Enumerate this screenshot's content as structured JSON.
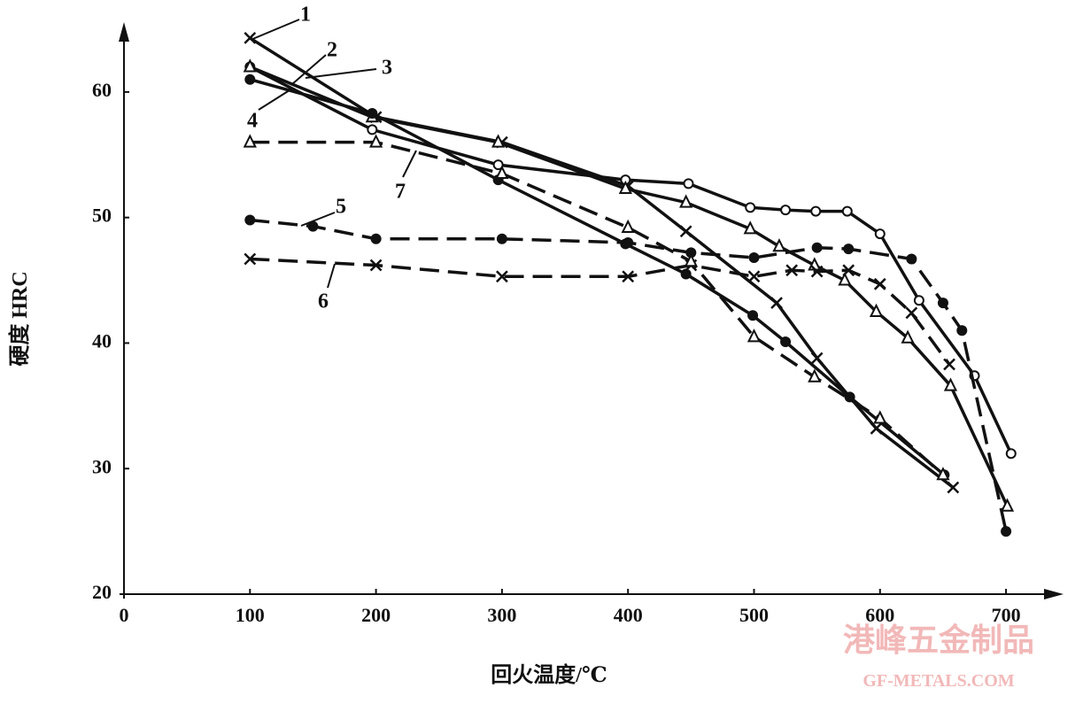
{
  "chart_data": {
    "type": "line",
    "x_label": "回火温度/℃",
    "y_label": "硬度  HRC",
    "xlim": [
      0,
      740
    ],
    "ylim": [
      20,
      65
    ],
    "xticks": [
      0,
      100,
      200,
      300,
      400,
      500,
      600,
      700
    ],
    "yticks": [
      20,
      30,
      40,
      50,
      60
    ],
    "series": [
      {
        "name": "1",
        "color": "#111111",
        "marker": "x",
        "dashed": false,
        "x": [
          100,
          200,
          300,
          400,
          446,
          518,
          550,
          597,
          658
        ],
        "values": [
          64.3,
          58,
          56,
          52.5,
          48.9,
          43.2,
          38.8,
          33.2,
          28.5
        ]
      },
      {
        "name": "2",
        "color": "#111111",
        "marker": "open-circle",
        "dashed": false,
        "x": [
          100,
          197,
          297,
          398,
          448,
          497,
          525,
          549,
          574,
          600,
          631,
          675,
          704
        ],
        "values": [
          62,
          57,
          54.2,
          53,
          52.7,
          50.8,
          50.6,
          50.5,
          50.5,
          48.7,
          43.4,
          37.4,
          31.2
        ]
      },
      {
        "name": "3",
        "color": "#111111",
        "marker": "triangle",
        "dashed": false,
        "x": [
          100,
          197,
          297,
          398,
          446,
          497,
          520,
          548,
          572,
          597,
          622,
          656,
          701
        ],
        "values": [
          62,
          58,
          56,
          52.3,
          51.2,
          49.1,
          47.7,
          46.2,
          45,
          42.5,
          40.4,
          36.6,
          27
        ]
      },
      {
        "name": "4",
        "color": "#111111",
        "marker": "filled-circle",
        "dashed": false,
        "x": [
          100,
          197,
          297,
          398,
          446,
          499,
          525,
          576,
          651
        ],
        "values": [
          61,
          58.3,
          53,
          47.9,
          45.5,
          42.2,
          40.1,
          35.7,
          29.5
        ]
      },
      {
        "name": "5",
        "color": "#111111",
        "marker": "filled-circle",
        "dashed": true,
        "x": [
          100,
          150,
          200,
          300,
          400,
          450,
          500,
          550,
          575,
          625,
          650,
          665,
          700
        ],
        "values": [
          49.8,
          49.3,
          48.3,
          48.3,
          48,
          47.2,
          46.8,
          47.6,
          47.5,
          46.7,
          43.2,
          41,
          25
        ]
      },
      {
        "name": "6",
        "color": "#111111",
        "marker": "x",
        "dashed": true,
        "x": [
          100,
          200,
          300,
          400,
          450,
          500,
          530,
          550,
          575,
          600,
          625,
          655
        ],
        "values": [
          46.7,
          46.2,
          45.3,
          45.3,
          46.2,
          45.3,
          45.8,
          45.7,
          45.8,
          44.7,
          42.4,
          38.3
        ]
      },
      {
        "name": "7",
        "color": "#111111",
        "marker": "triangle",
        "dashed": true,
        "x": [
          100,
          200,
          300,
          400,
          450,
          500,
          548,
          600,
          650
        ],
        "values": [
          56,
          56,
          53.5,
          49.2,
          46.5,
          40.5,
          37.3,
          34,
          29.5
        ]
      }
    ],
    "watermark": {
      "text": "港峰五金制品",
      "url": "GF-METALS.COM"
    }
  }
}
